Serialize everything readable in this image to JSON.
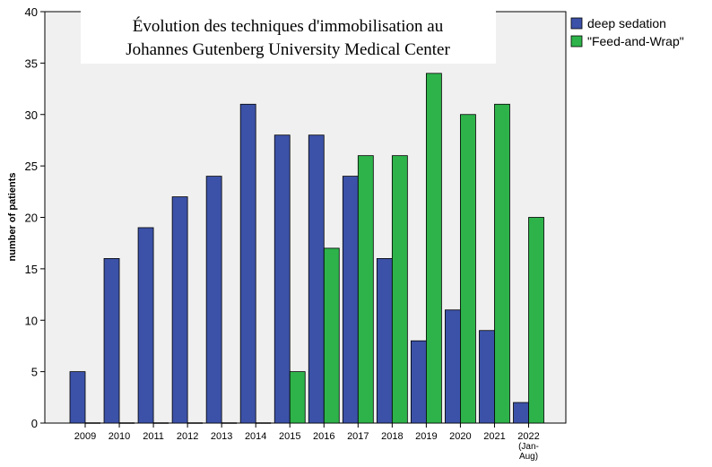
{
  "chart_data": {
    "type": "bar",
    "title": "Évolution des techniques d'immobilisation au Johannes Gutenberg University Medical Center",
    "title_lines": [
      "Évolution des techniques d'immobilisation au",
      "Johannes Gutenberg University Medical Center"
    ],
    "xlabel": "",
    "ylabel": "number of patients",
    "ylim": [
      0,
      40
    ],
    "yticks": [
      0,
      5,
      10,
      15,
      20,
      25,
      30,
      35,
      40
    ],
    "categories": [
      "2009",
      "2010",
      "2011",
      "2012",
      "2013",
      "2014",
      "2015",
      "2016",
      "2017",
      "2018",
      "2019",
      "2020",
      "2021",
      "2022"
    ],
    "category_notes": [
      "",
      "",
      "",
      "",
      "",
      "",
      "",
      "",
      "",
      "",
      "",
      "",
      "",
      "(Jan-Aug)"
    ],
    "series": [
      {
        "name": "deep sedation",
        "color": "#3c52a8",
        "values": [
          5,
          16,
          19,
          22,
          24,
          31,
          28,
          28,
          24,
          16,
          8,
          11,
          9,
          2
        ]
      },
      {
        "name": "\"Feed-and-Wrap\"",
        "color": "#2db34a",
        "values": [
          0,
          0,
          0,
          0,
          0,
          0,
          5,
          17,
          26,
          26,
          34,
          30,
          31,
          20
        ]
      }
    ],
    "grid": false,
    "legend_position": "top-right",
    "plot_background": "#f0f0f0"
  }
}
